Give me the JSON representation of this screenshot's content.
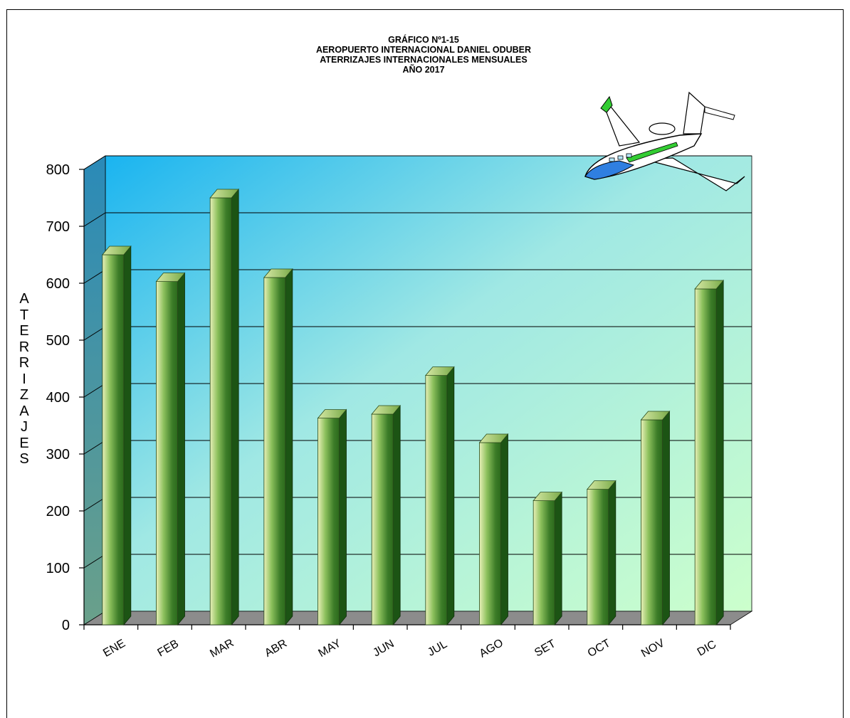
{
  "title": {
    "line1": "GRÁFICO Nº1-15",
    "line2": "AEROPUERTO  INTERNACIONAL  DANIEL  ODUBER",
    "line3": "ATERRIZAJES  INTERNACIONALES  MENSUALES",
    "line4": "AÑO 2017"
  },
  "ylabel_letters": [
    "A",
    "T",
    "E",
    "R",
    "R",
    "I",
    "Z",
    "A",
    "J",
    "E",
    "S"
  ],
  "colors": {
    "bar_light": "#e8f0b8",
    "bar_mid": "#5a9a3a",
    "bar_dark": "#1c5414",
    "wall_top_left": "#1ab4f0",
    "wall_bottom_right": "#ccffcc",
    "gridline": "#000000"
  },
  "decoration": "airplane-icon",
  "chart_data": {
    "type": "bar",
    "categories": [
      "ENE",
      "FEB",
      "MAR",
      "ABR",
      "MAY",
      "JUN",
      "JUL",
      "AGO",
      "SET",
      "OCT",
      "NOV",
      "DIC"
    ],
    "values": [
      650,
      603,
      750,
      610,
      363,
      370,
      438,
      320,
      218,
      238,
      360,
      590
    ],
    "xlabel": "",
    "ylabel": "ATERRIZAJES",
    "ylim": [
      0,
      800
    ],
    "yticks": [
      "0",
      "100",
      "200",
      "300",
      "400",
      "500",
      "600",
      "700",
      "800"
    ],
    "grid": true,
    "legend": "none"
  }
}
